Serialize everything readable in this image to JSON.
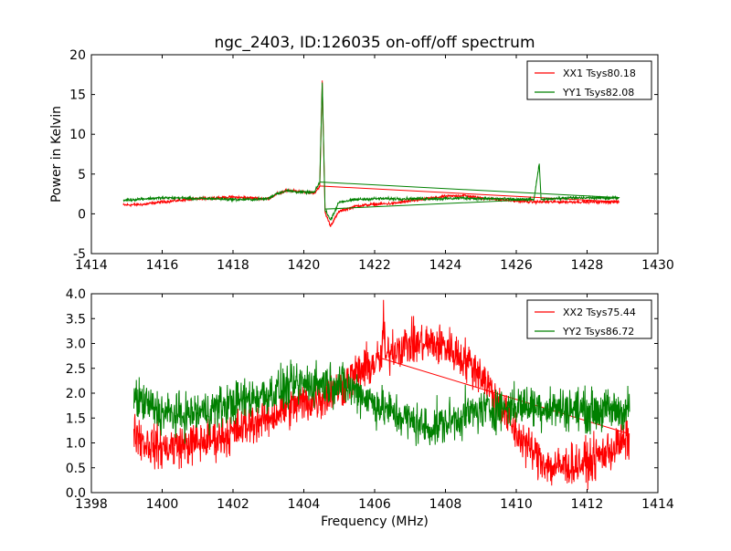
{
  "figure": {
    "title": "ngc_2403, ID:126035 on-off/off spectrum",
    "ylabel": "Power in Kelvin",
    "xlabel": "Frequency (MHz)"
  },
  "chart_data": [
    {
      "type": "line",
      "title": "ngc_2403, ID:126035 on-off/off spectrum",
      "xlabel": "",
      "ylabel": "Power in Kelvin",
      "xlim": [
        1414,
        1430
      ],
      "ylim": [
        -5,
        20
      ],
      "xticks": [
        "1414",
        "1416",
        "1418",
        "1420",
        "1422",
        "1424",
        "1426",
        "1428",
        "1430"
      ],
      "yticks": [
        "-5",
        "0",
        "5",
        "10",
        "15",
        "20"
      ],
      "legend_position": "top-right",
      "grid": false,
      "series": [
        {
          "name": "XX1 Tsys80.18",
          "color": "#ff0000",
          "x": [
            1414.9,
            1415.5,
            1416.0,
            1416.5,
            1417.0,
            1417.5,
            1418.0,
            1418.5,
            1419.0,
            1419.2,
            1419.5,
            1420.0,
            1420.3,
            1420.45,
            1420.52,
            1420.6,
            1420.75,
            1421.0,
            1421.5,
            1422.0,
            1422.5,
            1423.0,
            1423.5,
            1424.0,
            1424.5,
            1425.0,
            1425.5,
            1426.0,
            1426.5,
            1427.0,
            1427.5,
            1428.0,
            1428.9
          ],
          "values": [
            1.1,
            1.2,
            1.5,
            1.7,
            1.9,
            2.0,
            2.1,
            2.0,
            1.9,
            2.4,
            2.9,
            2.8,
            2.6,
            3.5,
            16.6,
            0.2,
            -1.5,
            0.3,
            1.0,
            1.2,
            1.3,
            1.6,
            1.9,
            2.2,
            2.3,
            2.0,
            1.8,
            1.6,
            1.5,
            1.5,
            1.5,
            1.5,
            1.5
          ]
        },
        {
          "name": "YY1 Tsys82.08",
          "color": "#008000",
          "x": [
            1414.9,
            1415.5,
            1416.0,
            1416.5,
            1417.0,
            1417.5,
            1418.0,
            1418.5,
            1419.0,
            1419.2,
            1419.5,
            1420.0,
            1420.3,
            1420.45,
            1420.52,
            1420.6,
            1420.75,
            1421.0,
            1421.5,
            1422.0,
            1422.5,
            1423.0,
            1423.5,
            1424.0,
            1424.5,
            1425.0,
            1425.5,
            1426.0,
            1426.5,
            1426.65,
            1426.7,
            1427.0,
            1427.5,
            1428.0,
            1428.9
          ],
          "values": [
            1.7,
            1.9,
            2.0,
            2.0,
            1.9,
            1.9,
            1.8,
            1.8,
            1.9,
            2.5,
            2.9,
            2.7,
            2.7,
            4.0,
            16.5,
            0.6,
            -0.8,
            1.5,
            1.8,
            1.9,
            1.9,
            1.9,
            1.9,
            1.9,
            2.0,
            1.9,
            1.9,
            1.8,
            1.8,
            6.3,
            1.8,
            1.9,
            2.0,
            2.0,
            2.0
          ]
        }
      ]
    },
    {
      "type": "line",
      "title": "",
      "xlabel": "Frequency (MHz)",
      "ylabel": "",
      "xlim": [
        1398,
        1414
      ],
      "ylim": [
        0.0,
        4.0
      ],
      "xticks": [
        "1398",
        "1400",
        "1402",
        "1404",
        "1406",
        "1408",
        "1410",
        "1412",
        "1414"
      ],
      "yticks": [
        "0.0",
        "0.5",
        "1.0",
        "1.5",
        "2.0",
        "2.5",
        "3.0",
        "3.5",
        "4.0"
      ],
      "legend_position": "top-right",
      "grid": false,
      "series": [
        {
          "name": "XX2 Tsys75.44",
          "color": "#ff0000",
          "x": [
            1399.2,
            1399.5,
            1400.0,
            1400.5,
            1401.0,
            1401.5,
            1402.0,
            1402.5,
            1403.0,
            1403.5,
            1404.0,
            1404.5,
            1405.0,
            1405.5,
            1406.0,
            1406.2,
            1406.25,
            1406.3,
            1406.5,
            1407.0,
            1407.5,
            1408.0,
            1408.5,
            1409.0,
            1409.5,
            1410.0,
            1410.5,
            1411.0,
            1411.5,
            1412.0,
            1412.5,
            1413.0,
            1413.2
          ],
          "values": [
            1.3,
            1.0,
            0.9,
            0.95,
            1.0,
            1.1,
            1.2,
            1.4,
            1.5,
            1.7,
            1.8,
            1.9,
            2.1,
            2.4,
            2.6,
            2.7,
            3.55,
            2.7,
            2.9,
            3.0,
            3.0,
            2.95,
            2.7,
            2.4,
            1.8,
            1.2,
            0.8,
            0.5,
            0.55,
            0.6,
            0.8,
            1.0,
            1.1
          ]
        },
        {
          "name": "YY2 Tsys86.72",
          "color": "#008000",
          "x": [
            1399.2,
            1399.5,
            1400.0,
            1400.5,
            1401.0,
            1401.5,
            1402.0,
            1402.5,
            1403.0,
            1403.5,
            1404.0,
            1404.5,
            1405.0,
            1405.5,
            1406.0,
            1406.5,
            1407.0,
            1407.5,
            1408.0,
            1408.5,
            1409.0,
            1409.5,
            1410.0,
            1410.5,
            1411.0,
            1411.5,
            1412.0,
            1412.5,
            1413.0,
            1413.2
          ],
          "values": [
            1.9,
            1.8,
            1.6,
            1.55,
            1.6,
            1.7,
            1.8,
            1.9,
            2.0,
            2.1,
            2.2,
            2.2,
            2.2,
            2.05,
            1.8,
            1.6,
            1.45,
            1.3,
            1.4,
            1.55,
            1.65,
            1.7,
            1.75,
            1.75,
            1.7,
            1.7,
            1.65,
            1.65,
            1.65,
            1.7
          ]
        }
      ]
    }
  ]
}
